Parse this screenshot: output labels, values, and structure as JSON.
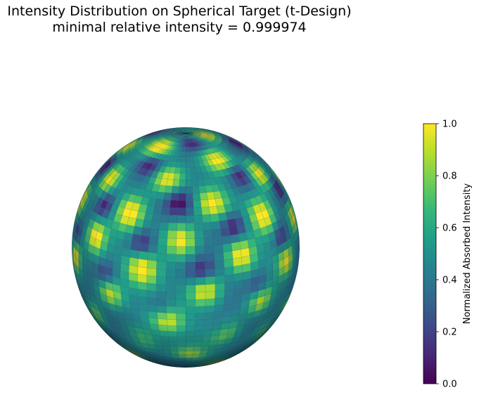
{
  "chart_data": {
    "type": "heatmap",
    "title": "Intensity Distribution on Spherical Target (t-Design)",
    "subtitle": "minimal relative intensity = 0.999974",
    "projection": "3d-sphere",
    "colormap": "viridis",
    "colorbar": {
      "label": "Normalized Absorbed Intensity",
      "range": [
        0.0,
        1.0
      ],
      "ticks": [
        0.0,
        0.2,
        0.4,
        0.6,
        0.8,
        1.0
      ],
      "tick_labels": [
        "0.0",
        "0.2",
        "0.4",
        "0.6",
        "0.8",
        "1.0"
      ],
      "placement": "right"
    },
    "colors": {
      "viridis": [
        "#440154",
        "#482777",
        "#3e4a89",
        "#31688e",
        "#26828e",
        "#1f9e89",
        "#35b779",
        "#6ece58",
        "#b5de2b",
        "#fde725"
      ]
    }
  }
}
